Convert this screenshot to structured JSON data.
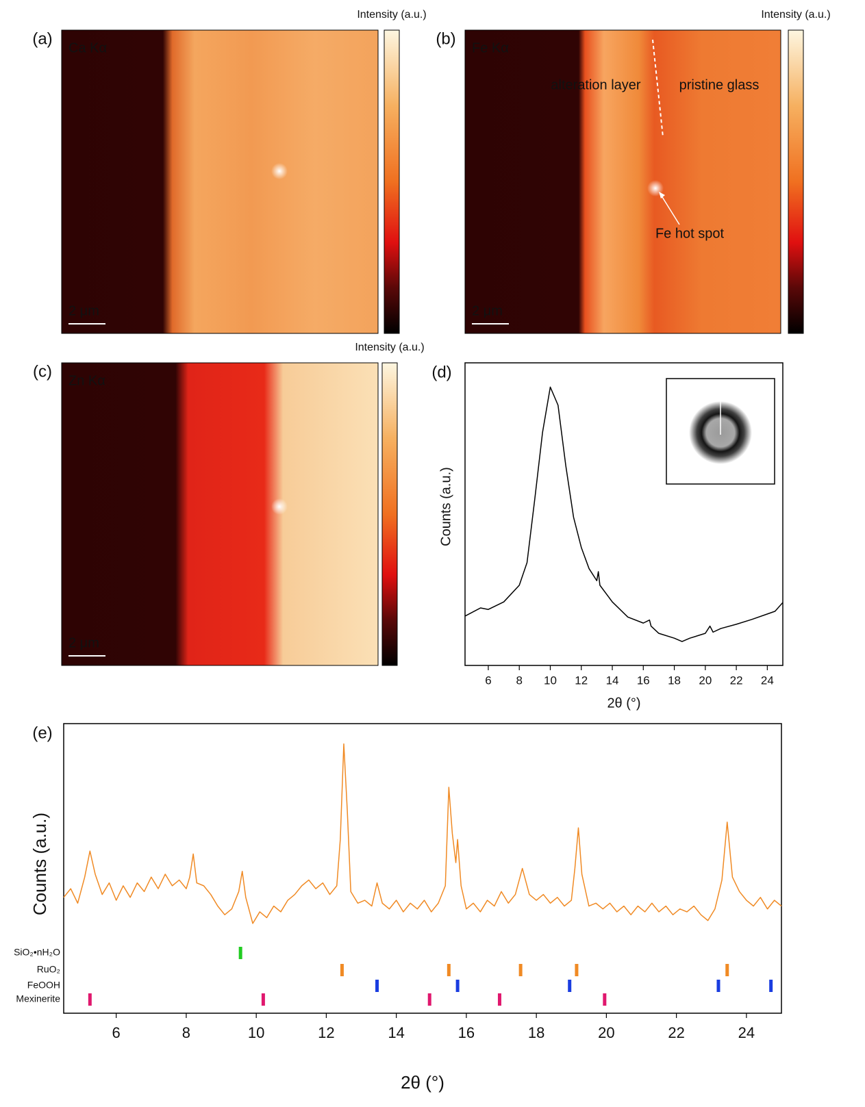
{
  "maps": [
    {
      "label": "(a)",
      "element": "Ca Kα",
      "scale_bar": "2 μm",
      "colorbar_label": "Intensity (a.u.)"
    },
    {
      "label": "(b)",
      "element": "Fe Kα",
      "scale_bar": "2 μm",
      "colorbar_label": "Intensity (a.u.)",
      "annotations": [
        "alteration layer",
        "pristine glass",
        "Fe hot spot"
      ]
    },
    {
      "label": "(c)",
      "element": "Zn Kα",
      "scale_bar": "2 μm",
      "colorbar_label": "Intensity (a.u.)"
    }
  ],
  "chart_data": [
    {
      "type": "line",
      "panel_label": "(d)",
      "x_label": "2θ (°)",
      "y_label": "Counts (a.u.)",
      "color": "#000000",
      "x": [
        4.5,
        5.5,
        6,
        7,
        8,
        8.5,
        9,
        9.5,
        10,
        10.5,
        11,
        11.5,
        12,
        12.5,
        13,
        13.1,
        13.2,
        14,
        15,
        16,
        16.4,
        16.5,
        17,
        18,
        18.5,
        19,
        20,
        20.3,
        20.5,
        21,
        22,
        23,
        24,
        24.5,
        25
      ],
      "values": [
        16.3,
        19,
        18.5,
        21,
        26.5,
        34,
        55,
        77,
        92,
        86,
        66,
        49,
        39,
        32,
        28,
        31,
        26.5,
        21,
        16,
        14,
        15,
        13,
        10.6,
        9,
        7.9,
        9,
        10.6,
        13,
        11,
        12.2,
        13.6,
        15.2,
        17,
        17.9,
        20.8
      ],
      "xlim": [
        4.5,
        25
      ],
      "ylim": [
        0,
        100
      ],
      "xticks": [
        6,
        8,
        10,
        12,
        14,
        16,
        18,
        20,
        22,
        24
      ]
    },
    {
      "type": "line",
      "panel_label": "(e)",
      "x_label": "2θ (°)",
      "y_label": "Counts (a.u.)",
      "color": "#f08a24",
      "x": [
        4.5,
        4.7,
        4.9,
        5.1,
        5.25,
        5.4,
        5.6,
        5.8,
        6.0,
        6.2,
        6.4,
        6.6,
        6.8,
        7.0,
        7.2,
        7.4,
        7.6,
        7.8,
        8.0,
        8.1,
        8.2,
        8.3,
        8.5,
        8.7,
        8.9,
        9.1,
        9.3,
        9.5,
        9.6,
        9.7,
        9.9,
        10.1,
        10.3,
        10.5,
        10.7,
        10.9,
        11.1,
        11.3,
        11.5,
        11.7,
        11.9,
        12.1,
        12.3,
        12.4,
        12.5,
        12.6,
        12.7,
        12.9,
        13.1,
        13.3,
        13.45,
        13.6,
        13.8,
        14.0,
        14.2,
        14.4,
        14.6,
        14.8,
        15.0,
        15.2,
        15.4,
        15.5,
        15.6,
        15.7,
        15.75,
        15.85,
        16.0,
        16.2,
        16.4,
        16.6,
        16.8,
        17.0,
        17.2,
        17.4,
        17.6,
        17.8,
        18.0,
        18.2,
        18.4,
        18.6,
        18.8,
        19.0,
        19.1,
        19.2,
        19.3,
        19.5,
        19.7,
        19.9,
        20.1,
        20.3,
        20.5,
        20.7,
        20.9,
        21.1,
        21.3,
        21.5,
        21.7,
        21.9,
        22.1,
        22.3,
        22.5,
        22.7,
        22.9,
        23.1,
        23.3,
        23.45,
        23.6,
        23.8,
        24.0,
        24.2,
        24.4,
        24.6,
        24.8,
        25.0
      ],
      "values": [
        40,
        43,
        38,
        47,
        56,
        48,
        41,
        45,
        39,
        44,
        40,
        45,
        42,
        47,
        43,
        48,
        44,
        46,
        43,
        47,
        55,
        45,
        44,
        41,
        37,
        34,
        36,
        42,
        49,
        40,
        31,
        35,
        33,
        37,
        35,
        39,
        41,
        44,
        46,
        43,
        45,
        41,
        44,
        60,
        93,
        70,
        42,
        38,
        39,
        37,
        45,
        38,
        36,
        39,
        35,
        38,
        36,
        39,
        35,
        38,
        44,
        78,
        62,
        52,
        60,
        44,
        36,
        38,
        35,
        39,
        37,
        42,
        38,
        41,
        50,
        41,
        39,
        41,
        38,
        40,
        37,
        39,
        50,
        64,
        48,
        37,
        38,
        36,
        38,
        35,
        37,
        34,
        37,
        35,
        38,
        35,
        37,
        34,
        36,
        35,
        37,
        34,
        32,
        36,
        46,
        66,
        47,
        42,
        39,
        37,
        40,
        36,
        39,
        37
      ],
      "xlim": [
        4.5,
        25
      ],
      "ylim": [
        0,
        100
      ],
      "xticks": [
        6,
        8,
        10,
        12,
        14,
        16,
        18,
        20,
        22,
        24
      ],
      "reference_markers": [
        {
          "name": "SiO₂•nH₂O",
          "color": "#22cc22",
          "positions": [
            9.55
          ]
        },
        {
          "name": "RuO₂",
          "color": "#f08a24",
          "positions": [
            12.45,
            15.5,
            17.55,
            19.15,
            23.45
          ]
        },
        {
          "name": "FeOOH",
          "color": "#1a3de0",
          "positions": [
            13.45,
            15.75,
            18.95,
            23.2,
            24.7
          ]
        },
        {
          "name": "Mexinerite",
          "color": "#e0186e",
          "positions": [
            5.25,
            10.2,
            14.95,
            16.95,
            19.95
          ]
        }
      ]
    }
  ]
}
